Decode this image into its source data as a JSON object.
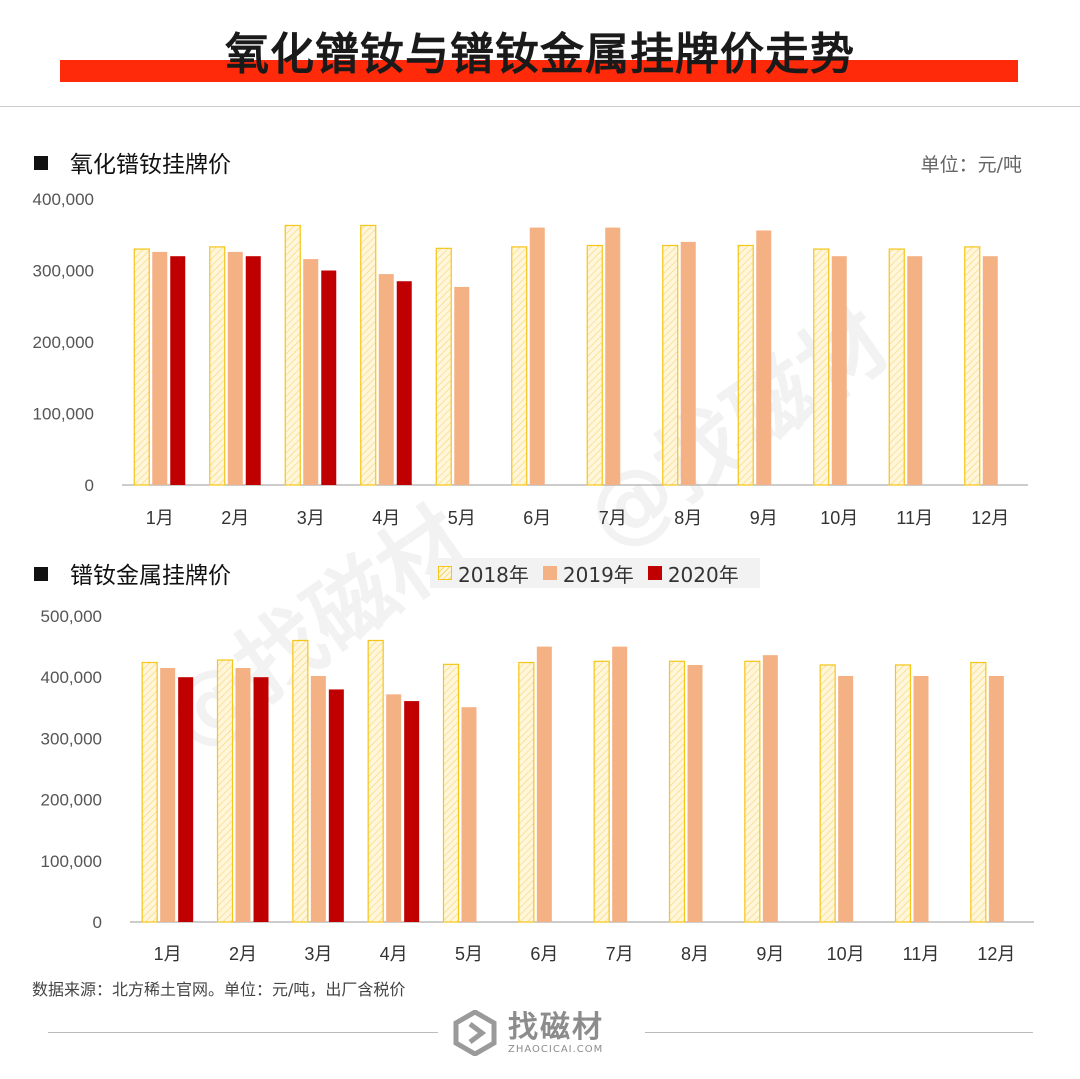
{
  "title": "氧化镨钕与镨钕金属挂牌价走势",
  "unit": "单位：元/吨",
  "source": "数据来源：北方稀土官网。单位：元/吨，出厂含税价",
  "logo": {
    "name": "找磁材",
    "domain": "ZHAOCICAI.COM"
  },
  "colors": {
    "accent": "#ff2a0a",
    "s2018_stroke": "#f5c518",
    "s2018_fill": "#fff6dc",
    "s2019": "#f4b183",
    "s2020": "#c00000"
  },
  "legend": [
    {
      "label": "2018年",
      "key": "s2018"
    },
    {
      "label": "2019年",
      "key": "s2019"
    },
    {
      "label": "2020年",
      "key": "s2020"
    }
  ],
  "chart_data": [
    {
      "type": "bar",
      "title": "氧化镨钕挂牌价",
      "categories": [
        "1月",
        "2月",
        "3月",
        "4月",
        "5月",
        "6月",
        "7月",
        "8月",
        "9月",
        "10月",
        "11月",
        "12月"
      ],
      "ylim": [
        0,
        400000
      ],
      "yticks": [
        "0",
        "100,000",
        "200,000",
        "300,000",
        "400,000"
      ],
      "series": [
        {
          "name": "2018年",
          "values": [
            330000,
            333000,
            363000,
            363000,
            331000,
            333000,
            335000,
            335000,
            335000,
            330000,
            330000,
            333000
          ]
        },
        {
          "name": "2019年",
          "values": [
            326000,
            326000,
            316000,
            295000,
            277000,
            360000,
            360000,
            340000,
            356000,
            320000,
            320000,
            320000
          ]
        },
        {
          "name": "2020年",
          "values": [
            320000,
            320000,
            300000,
            285000,
            null,
            null,
            null,
            null,
            null,
            null,
            null,
            null
          ]
        }
      ]
    },
    {
      "type": "bar",
      "title": "镨钕金属挂牌价",
      "categories": [
        "1月",
        "2月",
        "3月",
        "4月",
        "5月",
        "6月",
        "7月",
        "8月",
        "9月",
        "10月",
        "11月",
        "12月"
      ],
      "ylim": [
        0,
        500000
      ],
      "yticks": [
        "0",
        "100,000",
        "200,000",
        "300,000",
        "400,000",
        "500,000"
      ],
      "series": [
        {
          "name": "2018年",
          "values": [
            424000,
            428000,
            460000,
            460000,
            421000,
            424000,
            426000,
            426000,
            426000,
            420000,
            420000,
            424000
          ]
        },
        {
          "name": "2019年",
          "values": [
            415000,
            415000,
            402000,
            372000,
            351000,
            450000,
            450000,
            420000,
            436000,
            402000,
            402000,
            402000
          ]
        },
        {
          "name": "2020年",
          "values": [
            400000,
            400000,
            380000,
            361000,
            null,
            null,
            null,
            null,
            null,
            null,
            null,
            null
          ]
        }
      ]
    }
  ]
}
